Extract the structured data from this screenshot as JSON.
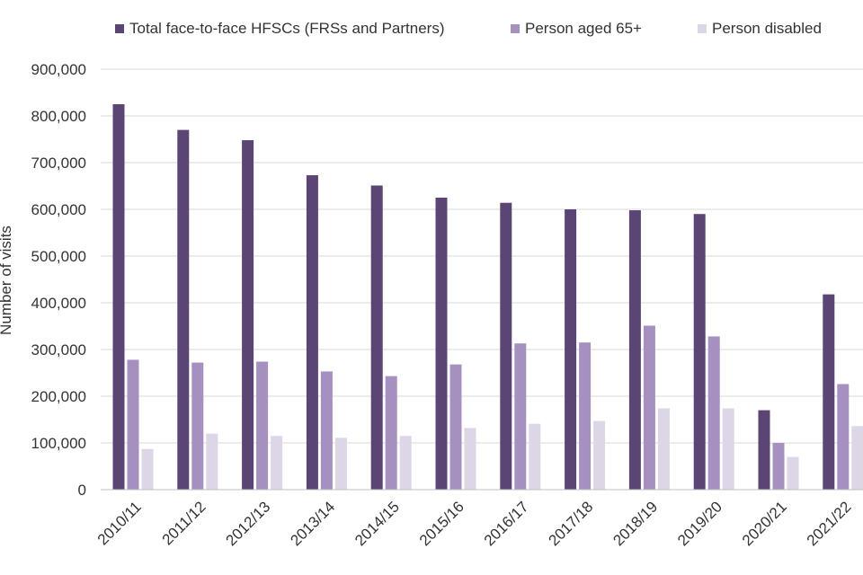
{
  "chart_data": {
    "type": "bar",
    "title": "",
    "xlabel": "",
    "ylabel": "Number of visits",
    "ylim": [
      0,
      900000
    ],
    "yticks": [
      0,
      100000,
      200000,
      300000,
      400000,
      500000,
      600000,
      700000,
      800000,
      900000
    ],
    "ytick_labels": [
      "0",
      "100,000",
      "200,000",
      "300,000",
      "400,000",
      "500,000",
      "600,000",
      "700,000",
      "800,000",
      "900,000"
    ],
    "grid": true,
    "legend_position": "top",
    "categories": [
      "2010/11",
      "2011/12",
      "2012/13",
      "2013/14",
      "2014/15",
      "2015/16",
      "2016/17",
      "2017/18",
      "2018/19",
      "2019/20",
      "2020/21",
      "2021/22"
    ],
    "series": [
      {
        "name": "Total face-to-face HFSCs (FRSs and Partners)",
        "color": "#5b4574",
        "values": [
          825000,
          770000,
          748000,
          673000,
          651000,
          625000,
          614000,
          600000,
          598000,
          590000,
          170000,
          418000
        ]
      },
      {
        "name": "Person aged 65+",
        "color": "#a590bf",
        "values": [
          278000,
          272000,
          274000,
          253000,
          243000,
          268000,
          313000,
          315000,
          351000,
          328000,
          100000,
          226000
        ]
      },
      {
        "name": "Person disabled",
        "color": "#ddd6e7",
        "values": [
          87000,
          120000,
          115000,
          111000,
          115000,
          132000,
          141000,
          147000,
          174000,
          174000,
          70000,
          136000
        ]
      }
    ]
  }
}
